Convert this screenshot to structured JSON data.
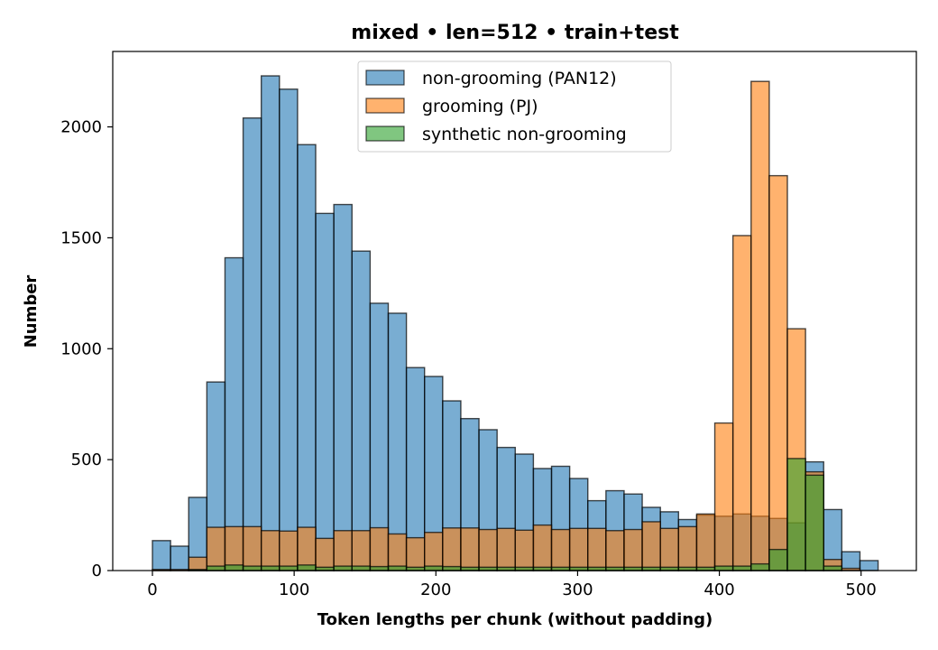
{
  "chart_data": {
    "type": "bar",
    "title": "mixed • len=512 • train+test",
    "xlabel": "Token lengths per chunk (without padding)",
    "ylabel": "Number",
    "xlim": [
      -28,
      539
    ],
    "ylim": [
      0,
      2340
    ],
    "xticks": [
      0,
      100,
      200,
      300,
      400,
      500
    ],
    "yticks": [
      0,
      500,
      1000,
      1500,
      2000
    ],
    "bin_width": 12.8,
    "bin_starts": [
      0,
      12.8,
      25.6,
      38.4,
      51.2,
      64,
      76.8,
      89.6,
      102.4,
      115.2,
      128,
      140.8,
      153.6,
      166.4,
      179.2,
      192,
      204.8,
      217.6,
      230.4,
      243.2,
      256,
      268.8,
      281.6,
      294.4,
      307.2,
      320,
      332.8,
      345.6,
      358.4,
      371.2,
      384,
      396.8,
      409.6,
      422.4,
      435.2,
      448,
      460.8,
      473.6,
      486.4,
      499.2
    ],
    "legend_position": "upper center",
    "series": [
      {
        "name": "non-grooming (PAN12)",
        "color": "#1f77b4",
        "values": [
          135,
          110,
          330,
          850,
          1410,
          2040,
          2230,
          2170,
          1920,
          1610,
          1650,
          1440,
          1205,
          1160,
          915,
          875,
          765,
          685,
          635,
          555,
          525,
          460,
          470,
          415,
          315,
          360,
          345,
          285,
          265,
          230,
          250,
          245,
          255,
          245,
          235,
          215,
          490,
          275,
          85,
          45
        ]
      },
      {
        "name": "grooming (PJ)",
        "color": "#ff7f0e",
        "values": [
          5,
          5,
          60,
          195,
          198,
          198,
          180,
          178,
          195,
          145,
          180,
          180,
          193,
          165,
          148,
          172,
          192,
          192,
          185,
          190,
          182,
          205,
          185,
          190,
          190,
          180,
          185,
          220,
          190,
          198,
          255,
          665,
          1510,
          2205,
          1780,
          1090,
          445,
          50,
          10,
          0
        ]
      },
      {
        "name": "synthetic non-grooming",
        "color": "#2ca02c",
        "values": [
          0,
          0,
          5,
          20,
          25,
          20,
          20,
          20,
          25,
          15,
          20,
          20,
          18,
          20,
          15,
          20,
          18,
          15,
          15,
          15,
          15,
          15,
          15,
          15,
          15,
          15,
          15,
          15,
          15,
          15,
          15,
          20,
          20,
          30,
          95,
          505,
          430,
          20,
          0,
          0
        ]
      }
    ]
  }
}
